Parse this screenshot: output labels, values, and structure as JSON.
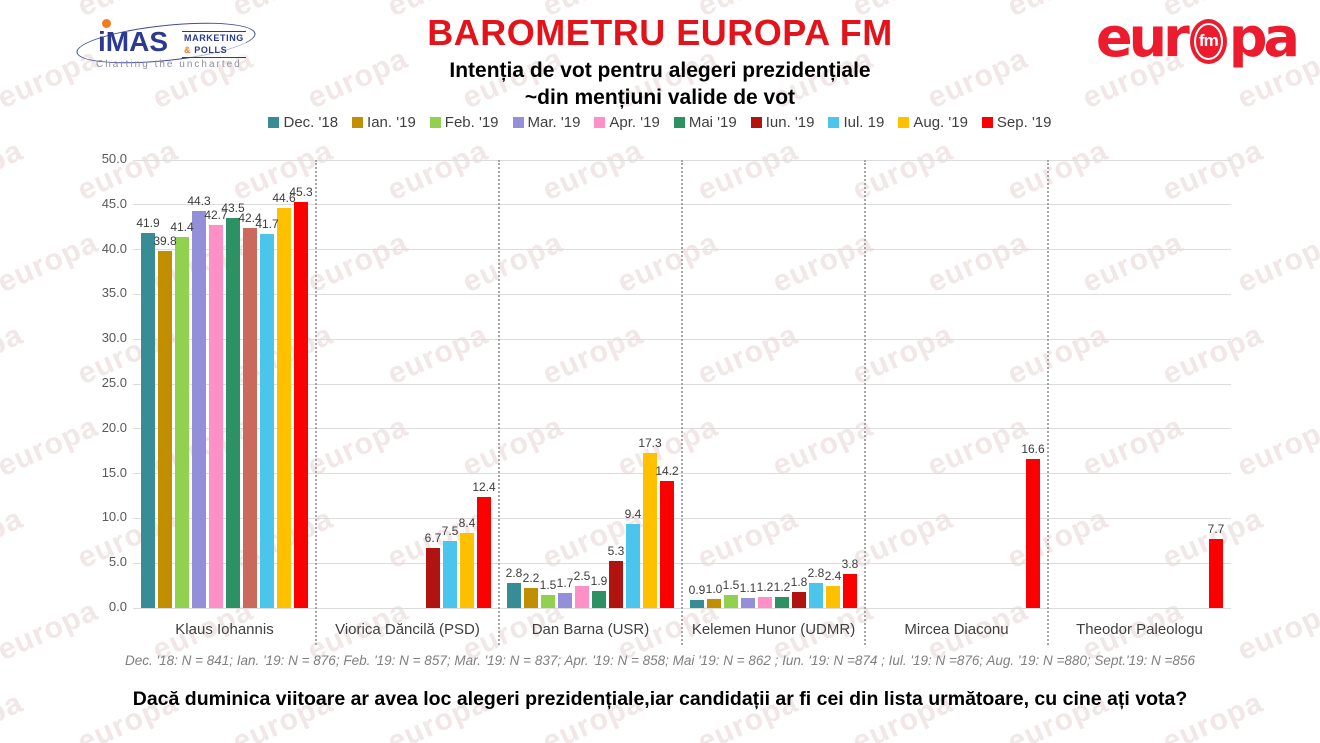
{
  "header": {
    "title": "BAROMETRU EUROPA FM",
    "subtitle1": "Intenția de vot pentru alegeri prezidențiale",
    "subtitle2": "~din mențiuni valide de vot",
    "imas_logo": {
      "word": "iMAS",
      "sub_line1": "MARKETING",
      "sub_amp": "&",
      "sub_line2": " POLLS",
      "tagline": "Charting the uncharted"
    },
    "europa_logo": {
      "part1": "eur",
      "fm": "fm",
      "part2": "pa"
    }
  },
  "watermark_text": "europa",
  "colors": {
    "title_red": "#e2131b",
    "europa_red": "#ed1b2e",
    "imas_navy": "#2b3990",
    "imas_orange": "#f47b20"
  },
  "chart_data": {
    "type": "bar",
    "title": "Intenția de vot pentru alegeri prezidențiale ~din mențiuni valide de vot",
    "xlabel": "",
    "ylabel": "",
    "ylim": [
      0,
      50
    ],
    "ytick_step": 5,
    "grid": true,
    "legend_position": "top",
    "value_labels": true,
    "categories": [
      "Klaus Iohannis",
      "Viorica Dăncilă (PSD)",
      "Dan Barna (USR)",
      "Kelemen Hunor (UDMR)",
      "Mircea Diaconu",
      "Theodor Paleologu"
    ],
    "series": [
      {
        "name": "Dec. '18",
        "color": "#378C96",
        "values": [
          41.9,
          null,
          2.8,
          0.9,
          null,
          null
        ]
      },
      {
        "name": "Ian. '19",
        "color": "#C18E00",
        "values": [
          39.8,
          null,
          2.2,
          1.0,
          null,
          null
        ]
      },
      {
        "name": "Feb. '19",
        "color": "#92D050",
        "values": [
          41.4,
          null,
          1.5,
          1.5,
          null,
          null
        ]
      },
      {
        "name": "Mar. '19",
        "color": "#938FD9",
        "values": [
          44.3,
          null,
          1.7,
          1.1,
          null,
          null
        ]
      },
      {
        "name": "Apr. '19",
        "color": "#FF8FC7",
        "values": [
          42.7,
          null,
          2.5,
          1.2,
          null,
          null
        ]
      },
      {
        "name": "Mai '19",
        "color": "#2E9163",
        "values": [
          43.5,
          null,
          1.9,
          1.2,
          null,
          null
        ]
      },
      {
        "name": "Iun. '19",
        "color": "#B01310",
        "values": [
          42.4,
          6.7,
          5.3,
          1.8,
          null,
          null
        ],
        "color_overrides": {
          "0": "#CB695D"
        }
      },
      {
        "name": "Iul. 19",
        "color": "#4CC5EC",
        "values": [
          41.7,
          7.5,
          9.4,
          2.8,
          null,
          null
        ]
      },
      {
        "name": "Aug. '19",
        "color": "#FFC000",
        "values": [
          44.6,
          8.4,
          17.3,
          2.4,
          null,
          null
        ]
      },
      {
        "name": "Sep. '19",
        "color": "#FA0000",
        "values": [
          45.3,
          12.4,
          14.2,
          3.8,
          16.6,
          7.7
        ]
      }
    ]
  },
  "footnote": "Dec. '18: N = 841; Ian. '19: N = 876; Feb. '19: N = 857; Mar. '19: N = 837; Apr. '19: N = 858; Mai '19: N = 862 ; Iun. '19: N =874 ; Iul. '19: N =876; Aug. '19: N =880; Sept.'19: N =856",
  "question": "Dacă duminica viitoare ar avea loc alegeri prezidențiale,iar candidații ar fi cei din lista următoare, cu cine ați vota?"
}
